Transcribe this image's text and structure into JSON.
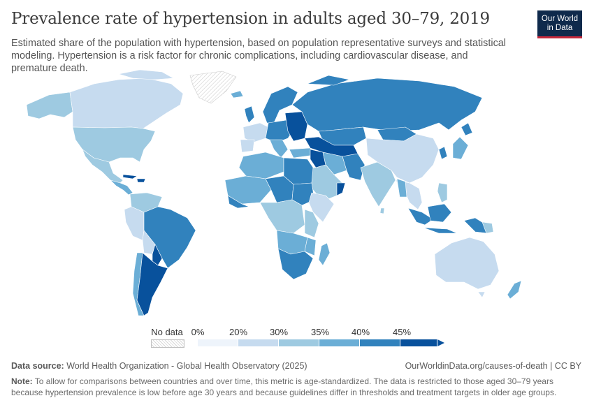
{
  "header": {
    "title": "Prevalence rate of hypertension in adults aged 30–79, 2019",
    "subtitle": "Estimated share of the population with hypertension, based on population representative surveys and statistical modeling. Hypertension is a risk factor for chronic complications, including cardiovascular disease, and premature death.",
    "logo_line1": "Our World",
    "logo_line2": "in Data"
  },
  "legend": {
    "no_data_label": "No data",
    "ticks": [
      "0%",
      "20%",
      "30%",
      "35%",
      "40%",
      "45%"
    ],
    "colors": [
      "#eef4fb",
      "#c6dbef",
      "#9ecae1",
      "#6baed6",
      "#3182bd",
      "#08519c"
    ],
    "no_data_color": "#e6e6e6"
  },
  "footer": {
    "source_label": "Data source:",
    "source_text": " World Health Organization - Global Health Observatory (2025)",
    "url": "OurWorldinData.org/causes-of-death | CC BY",
    "note_label": "Note:",
    "note_text": " To allow for comparisons between countries and over time, this metric is age-standardized. The data is restricted to those aged 30–79 years because hypertension prevalence is low before age 30 years and because guidelines differ in thresholds and treatment targets in older age groups."
  }
}
